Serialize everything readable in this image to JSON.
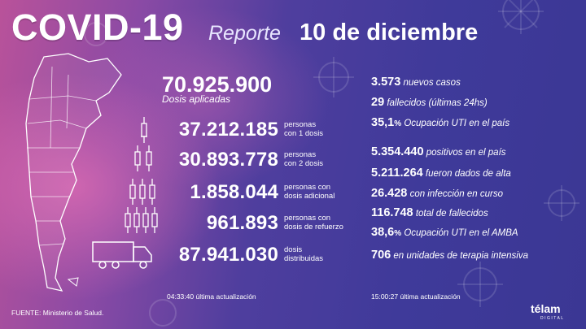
{
  "header": {
    "title": "COVID-19",
    "subtitle_prefix": "Reporte",
    "date": "10 de diciembre"
  },
  "vaccination": {
    "total_doses": "70.925.900",
    "total_doses_label": "Dosis aplicadas",
    "rows": [
      {
        "value": "37.212.185",
        "label_line1": "personas",
        "label_line2": "con 1 dosis",
        "icon": "syringe-1-icon"
      },
      {
        "value": "30.893.778",
        "label_line1": "personas",
        "label_line2": "con 2 dosis",
        "icon": "syringe-2-icon"
      },
      {
        "value": "1.858.044",
        "label_line1": "personas con",
        "label_line2": "dosis adicional",
        "icon": "syringe-3-icon"
      },
      {
        "value": "961.893",
        "label_line1": "personas con",
        "label_line2": "dosis de refuerzo",
        "icon": "syringe-4-icon"
      },
      {
        "value": "87.941.030",
        "label_line1": "dosis",
        "label_line2": "distribuidas",
        "icon": "truck-icon"
      }
    ],
    "updated_time": "04:33:40",
    "updated_label": "última actualización"
  },
  "cases": {
    "daily": [
      {
        "value": "3.573",
        "text": "nuevos casos"
      },
      {
        "value": "29",
        "text": "fallecidos (últimas 24hs)"
      },
      {
        "value": "35,1",
        "pct": "%",
        "text": "Ocupación UTI en el país"
      }
    ],
    "totals": [
      {
        "value": "5.354.440",
        "text": "positivos en el país"
      },
      {
        "value": "5.211.264",
        "text": "fueron dados de alta"
      },
      {
        "value": "26.428",
        "text": "con infección en curso"
      },
      {
        "value": "116.748",
        "text": "total de fallecidos"
      },
      {
        "value": "38,6",
        "pct": "%",
        "text": "Ocupación UTI en el AMBA"
      },
      {
        "value": "706",
        "text": "en unidades de terapia intensiva"
      }
    ],
    "updated_time": "15:00:27",
    "updated_label": "última actualización"
  },
  "footer": {
    "source": "FUENTE: Ministerio de Salud.",
    "brand": "télam",
    "brand_sub": "DIGITAL"
  },
  "colors": {
    "pink": "#b9529a",
    "purple": "#3f3a9a",
    "text": "#ffffff"
  }
}
